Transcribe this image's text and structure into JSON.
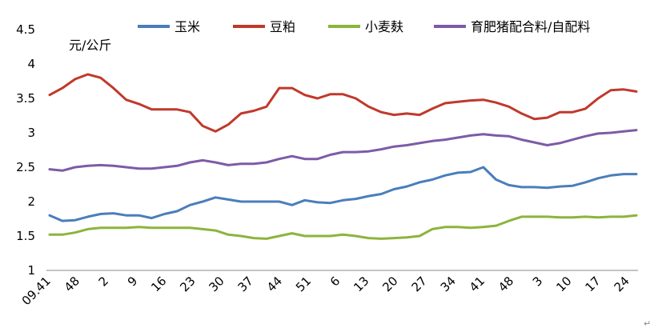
{
  "chart_data": {
    "type": "line",
    "ylabel": "元/公斤",
    "ylim": [
      1,
      4.5
    ],
    "yticks": [
      "1",
      "1.5",
      "2",
      "2.5",
      "3",
      "3.5",
      "4",
      "4.5"
    ],
    "xticks": [
      "09.41",
      "48",
      "2",
      "9",
      "16",
      "23",
      "30",
      "37",
      "44",
      "51",
      "6",
      "13",
      "20",
      "27",
      "34",
      "41",
      "48",
      "3",
      "10",
      "17",
      "24"
    ],
    "legend_position": "top",
    "grid": false,
    "corner_mark": "↵",
    "series": [
      {
        "name": "玉米",
        "color": "#4A7EBB",
        "points": [
          [
            0,
            1.8
          ],
          [
            1,
            1.72
          ],
          [
            2,
            1.73
          ],
          [
            3,
            1.78
          ],
          [
            4,
            1.82
          ],
          [
            5,
            1.83
          ],
          [
            6,
            1.8
          ],
          [
            7,
            1.8
          ],
          [
            8,
            1.76
          ],
          [
            9,
            1.82
          ],
          [
            10,
            1.86
          ],
          [
            11,
            1.95
          ],
          [
            12,
            2.0
          ],
          [
            13,
            2.06
          ],
          [
            14,
            2.03
          ],
          [
            15,
            2.0
          ],
          [
            16,
            2.0
          ],
          [
            17,
            2.0
          ],
          [
            18,
            2.0
          ],
          [
            19,
            1.95
          ],
          [
            20,
            2.02
          ],
          [
            21,
            1.99
          ],
          [
            22,
            1.98
          ],
          [
            23,
            2.02
          ],
          [
            24,
            2.04
          ],
          [
            25,
            2.08
          ],
          [
            26,
            2.11
          ],
          [
            27,
            2.18
          ],
          [
            28,
            2.22
          ],
          [
            29,
            2.28
          ],
          [
            30,
            2.32
          ],
          [
            31,
            2.38
          ],
          [
            32,
            2.42
          ],
          [
            33,
            2.43
          ],
          [
            34,
            2.5
          ],
          [
            35,
            2.32
          ],
          [
            36,
            2.24
          ],
          [
            37,
            2.21
          ],
          [
            38,
            2.21
          ],
          [
            39,
            2.2
          ],
          [
            40,
            2.22
          ],
          [
            41,
            2.23
          ],
          [
            42,
            2.28
          ],
          [
            43,
            2.34
          ],
          [
            44,
            2.38
          ],
          [
            45,
            2.4
          ],
          [
            46,
            2.4
          ]
        ]
      },
      {
        "name": "豆粕",
        "color": "#C0392B",
        "points": [
          [
            0,
            3.55
          ],
          [
            1,
            3.65
          ],
          [
            2,
            3.78
          ],
          [
            3,
            3.85
          ],
          [
            4,
            3.8
          ],
          [
            5,
            3.65
          ],
          [
            6,
            3.48
          ],
          [
            7,
            3.42
          ],
          [
            8,
            3.34
          ],
          [
            9,
            3.34
          ],
          [
            10,
            3.34
          ],
          [
            11,
            3.3
          ],
          [
            12,
            3.1
          ],
          [
            13,
            3.02
          ],
          [
            14,
            3.12
          ],
          [
            15,
            3.28
          ],
          [
            16,
            3.32
          ],
          [
            17,
            3.38
          ],
          [
            18,
            3.65
          ],
          [
            19,
            3.65
          ],
          [
            20,
            3.55
          ],
          [
            21,
            3.5
          ],
          [
            22,
            3.56
          ],
          [
            23,
            3.56
          ],
          [
            24,
            3.5
          ],
          [
            25,
            3.38
          ],
          [
            26,
            3.3
          ],
          [
            27,
            3.26
          ],
          [
            28,
            3.28
          ],
          [
            29,
            3.26
          ],
          [
            30,
            3.35
          ],
          [
            31,
            3.43
          ],
          [
            32,
            3.45
          ],
          [
            33,
            3.47
          ],
          [
            34,
            3.48
          ],
          [
            35,
            3.44
          ],
          [
            36,
            3.38
          ],
          [
            37,
            3.28
          ],
          [
            38,
            3.2
          ],
          [
            39,
            3.22
          ],
          [
            40,
            3.3
          ],
          [
            41,
            3.3
          ],
          [
            42,
            3.35
          ],
          [
            43,
            3.5
          ],
          [
            44,
            3.62
          ],
          [
            45,
            3.63
          ],
          [
            46,
            3.6
          ]
        ]
      },
      {
        "name": "小麦麸",
        "color": "#8DB43C",
        "points": [
          [
            0,
            1.52
          ],
          [
            1,
            1.52
          ],
          [
            2,
            1.55
          ],
          [
            3,
            1.6
          ],
          [
            4,
            1.62
          ],
          [
            5,
            1.62
          ],
          [
            6,
            1.62
          ],
          [
            7,
            1.63
          ],
          [
            8,
            1.62
          ],
          [
            9,
            1.62
          ],
          [
            10,
            1.62
          ],
          [
            11,
            1.62
          ],
          [
            12,
            1.6
          ],
          [
            13,
            1.58
          ],
          [
            14,
            1.52
          ],
          [
            15,
            1.5
          ],
          [
            16,
            1.47
          ],
          [
            17,
            1.46
          ],
          [
            18,
            1.5
          ],
          [
            19,
            1.54
          ],
          [
            20,
            1.5
          ],
          [
            21,
            1.5
          ],
          [
            22,
            1.5
          ],
          [
            23,
            1.52
          ],
          [
            24,
            1.5
          ],
          [
            25,
            1.47
          ],
          [
            26,
            1.46
          ],
          [
            27,
            1.47
          ],
          [
            28,
            1.48
          ],
          [
            29,
            1.5
          ],
          [
            30,
            1.6
          ],
          [
            31,
            1.63
          ],
          [
            32,
            1.63
          ],
          [
            33,
            1.62
          ],
          [
            34,
            1.63
          ],
          [
            35,
            1.65
          ],
          [
            36,
            1.72
          ],
          [
            37,
            1.78
          ],
          [
            38,
            1.78
          ],
          [
            39,
            1.78
          ],
          [
            40,
            1.77
          ],
          [
            41,
            1.77
          ],
          [
            42,
            1.78
          ],
          [
            43,
            1.77
          ],
          [
            44,
            1.78
          ],
          [
            45,
            1.78
          ],
          [
            46,
            1.8
          ]
        ]
      },
      {
        "name": "育肥猪配合料/自配料",
        "color": "#7D5BA6",
        "points": [
          [
            0,
            2.47
          ],
          [
            1,
            2.45
          ],
          [
            2,
            2.5
          ],
          [
            3,
            2.52
          ],
          [
            4,
            2.53
          ],
          [
            5,
            2.52
          ],
          [
            6,
            2.5
          ],
          [
            7,
            2.48
          ],
          [
            8,
            2.48
          ],
          [
            9,
            2.5
          ],
          [
            10,
            2.52
          ],
          [
            11,
            2.57
          ],
          [
            12,
            2.6
          ],
          [
            13,
            2.57
          ],
          [
            14,
            2.53
          ],
          [
            15,
            2.55
          ],
          [
            16,
            2.55
          ],
          [
            17,
            2.57
          ],
          [
            18,
            2.62
          ],
          [
            19,
            2.66
          ],
          [
            20,
            2.62
          ],
          [
            21,
            2.62
          ],
          [
            22,
            2.68
          ],
          [
            23,
            2.72
          ],
          [
            24,
            2.72
          ],
          [
            25,
            2.73
          ],
          [
            26,
            2.76
          ],
          [
            27,
            2.8
          ],
          [
            28,
            2.82
          ],
          [
            29,
            2.85
          ],
          [
            30,
            2.88
          ],
          [
            31,
            2.9
          ],
          [
            32,
            2.93
          ],
          [
            33,
            2.96
          ],
          [
            34,
            2.98
          ],
          [
            35,
            2.96
          ],
          [
            36,
            2.95
          ],
          [
            37,
            2.9
          ],
          [
            38,
            2.86
          ],
          [
            39,
            2.82
          ],
          [
            40,
            2.85
          ],
          [
            41,
            2.9
          ],
          [
            42,
            2.95
          ],
          [
            43,
            2.99
          ],
          [
            44,
            3.0
          ],
          [
            45,
            3.02
          ],
          [
            46,
            3.04
          ]
        ]
      }
    ]
  }
}
